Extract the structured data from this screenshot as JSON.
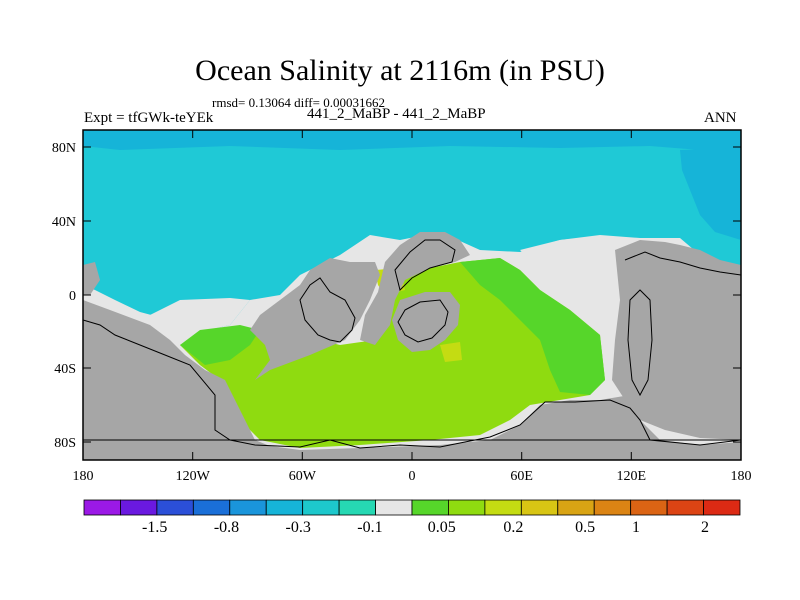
{
  "title": "Ocean Salinity at 2116m (in PSU)",
  "stats": "rmsd= 0.13064 diff= 0.00031662",
  "experiment": "Expt = tfGWk-teYEk",
  "case_names": "441_2_MaBP - 441_2_MaBP",
  "season": "ANN",
  "lat_ticks": [
    "80N",
    "40N",
    "0",
    "40S",
    "80S"
  ],
  "lon_ticks": [
    "180",
    "120W",
    "60W",
    "0",
    "60E",
    "120E",
    "180"
  ],
  "colorbar": {
    "colors": [
      "#9b19e6",
      "#6a19e0",
      "#2b4fd8",
      "#1a6fd8",
      "#1a95db",
      "#16b4d8",
      "#1dc8cc",
      "#26d8b3",
      "#e6e6e6",
      "#56d62a",
      "#8fdb10",
      "#c4dc12",
      "#d8c514",
      "#d9a414",
      "#db8414",
      "#db6414",
      "#dc4414",
      "#dc2a14"
    ],
    "labels": [
      "-1.5",
      "-0.8",
      "-0.3",
      "-0.1",
      "0.05",
      "0.2",
      "0.5",
      "1",
      "2"
    ]
  },
  "legend_colors": {
    "land": "#a6a6a6",
    "no_data": "#e6e6e6",
    "north_ocean": "#1fc9d6",
    "arctic": "#16b4d8",
    "near_zero_ocean": "#56d62a",
    "positive_ocean": "#8fdb10",
    "high_positive": "#c4dc12"
  }
}
